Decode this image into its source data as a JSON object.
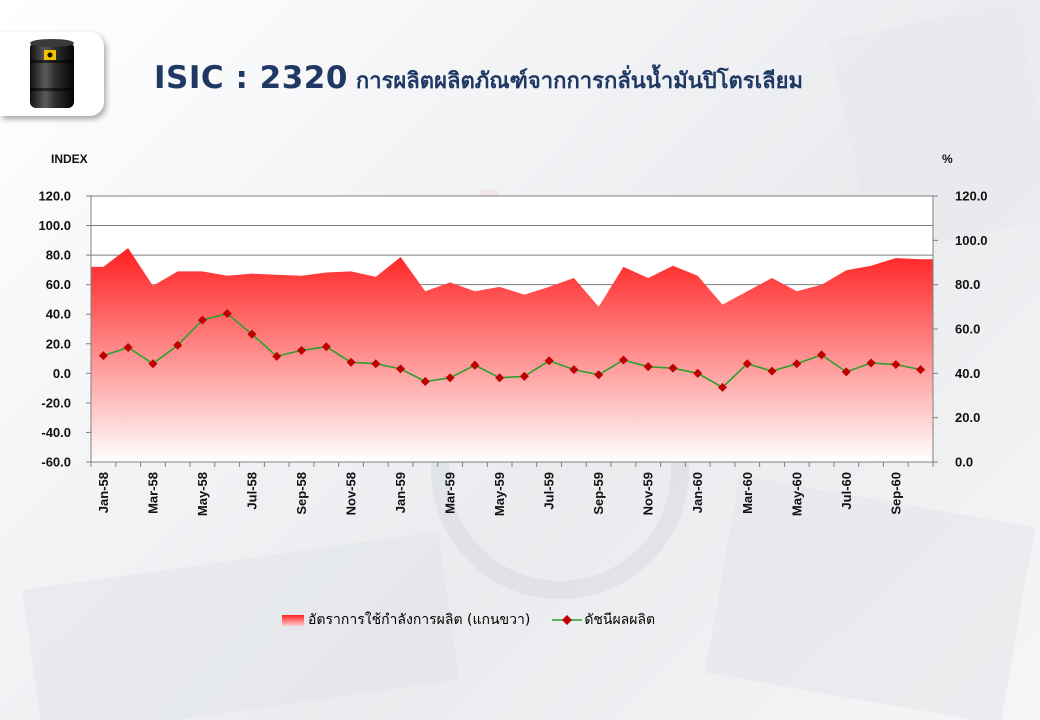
{
  "header": {
    "code": "ISIC : 2320",
    "name": "การผลิตผลิตภัณฑ์จากการกลั่นน้ำมันปิโตรเลียม",
    "logo_icon": "oil-barrel-icon"
  },
  "colors": {
    "title": "#1f3864",
    "area_top": "#ff1f1f",
    "area_bottom": "#ffffff",
    "line": "#2ca02c",
    "marker": "#c00000"
  },
  "chart_data": {
    "type": "line",
    "left_axis": {
      "label": "INDEX",
      "min": -60,
      "max": 120,
      "step": 20,
      "ticks": [
        "120.0",
        "100.0",
        "80.0",
        "60.0",
        "40.0",
        "20.0",
        "0.0",
        "-20.0",
        "-40.0",
        "-60.0"
      ]
    },
    "right_axis": {
      "label": "%",
      "min": 0,
      "max": 120,
      "step": 20,
      "ticks": [
        "120.0",
        "100.0",
        "80.0",
        "60.0",
        "40.0",
        "20.0",
        "0.0"
      ]
    },
    "x": [
      "Jan-58",
      "Feb-58",
      "Mar-58",
      "Apr-58",
      "May-58",
      "Jun-58",
      "Jul-58",
      "Aug-58",
      "Sep-58",
      "Oct-58",
      "Nov-58",
      "Dec-58",
      "Jan-59",
      "Feb-59",
      "Mar-59",
      "Apr-59",
      "May-59",
      "Jun-59",
      "Jul-59",
      "Aug-59",
      "Sep-59",
      "Oct-59",
      "Nov-59",
      "Dec-59",
      "Jan-60",
      "Feb-60",
      "Mar-60",
      "Apr-60",
      "May-60",
      "Jun-60",
      "Jul-60",
      "Aug-60",
      "Sep-60",
      "Oct-60"
    ],
    "x_tick_labels": [
      "Jan-58",
      "Mar-58",
      "May-58",
      "Jul-58",
      "Sep-58",
      "Nov-58",
      "Jan-59",
      "Mar-59",
      "May-59",
      "Jul-59",
      "Sep-59",
      "Nov-59",
      "Jan-60",
      "Mar-60",
      "May-60",
      "Jul-60",
      "Sep-60"
    ],
    "grid": true,
    "legend_position": "bottom",
    "series": [
      {
        "name": "อัตราการใช้กำลังการผลิต (แกนขวา)",
        "type": "area",
        "axis": "right",
        "values": [
          88.0,
          96.5,
          79.5,
          86.0,
          86.0,
          84.0,
          85.0,
          84.5,
          84.0,
          85.5,
          86.0,
          83.5,
          92.5,
          77.0,
          81.0,
          77.0,
          79.0,
          75.5,
          79.0,
          83.0,
          70.0,
          88.0,
          83.0,
          88.5,
          84.0,
          71.0,
          77.0,
          83.0,
          77.0,
          80.0,
          86.5,
          88.5,
          92.0,
          91.5
        ]
      },
      {
        "name": "ดัชนีผลผลิต",
        "type": "line",
        "axis": "left",
        "values": [
          12.0,
          17.5,
          6.5,
          19.0,
          36.0,
          40.5,
          26.5,
          11.5,
          15.5,
          18.0,
          7.5,
          6.5,
          3.0,
          -5.5,
          -3.0,
          5.5,
          -3.0,
          -2.0,
          8.5,
          2.5,
          -1.0,
          9.0,
          4.5,
          3.5,
          0.0,
          -9.5,
          6.5,
          1.5,
          6.5,
          12.5,
          1.0,
          7.0,
          6.0,
          2.5
        ]
      }
    ]
  }
}
